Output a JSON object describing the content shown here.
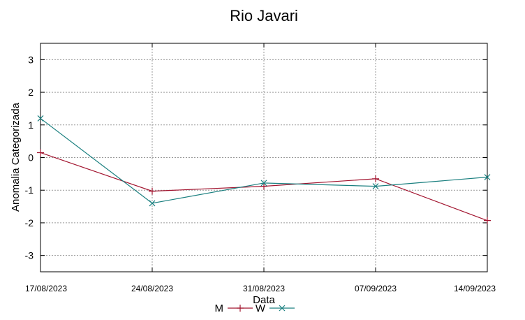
{
  "chart_data": {
    "type": "line",
    "title": "Rio Javari",
    "xlabel": "Data",
    "ylabel": "Anomalia Categorizada",
    "categories": [
      "17/08/2023",
      "24/08/2023",
      "31/08/2023",
      "07/09/2023",
      "14/09/2023"
    ],
    "yticks": [
      3,
      2,
      1,
      0,
      -1,
      -2,
      -3
    ],
    "ylim": [
      -3.5,
      3.5
    ],
    "grid": true,
    "legend_position": "bottom-center",
    "series": [
      {
        "name": "M",
        "values": [
          0.15,
          -1.03,
          -0.88,
          -0.65,
          -1.93
        ],
        "color": "#a2142f",
        "marker": "plus"
      },
      {
        "name": "W",
        "values": [
          1.2,
          -1.4,
          -0.78,
          -0.88,
          -0.6
        ],
        "color": "#1a7f7f",
        "marker": "cross"
      }
    ]
  }
}
